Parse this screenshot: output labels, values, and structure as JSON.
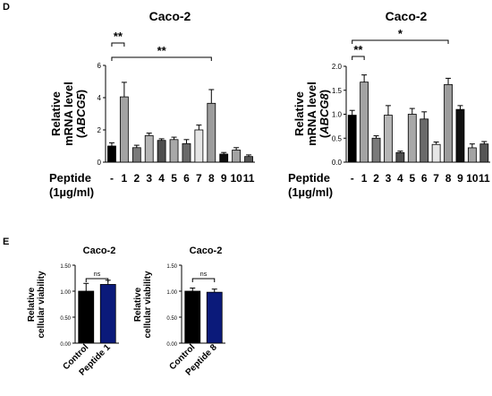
{
  "panels": {
    "d_label": "D",
    "e_label": "E"
  },
  "chart_data": [
    {
      "type": "bar",
      "title": "Caco-2",
      "ylabel": "Relative mRNA level",
      "ylabel_gene": "ABCG5",
      "xlabel_line1": "Peptide",
      "xlabel_line2": "(1µg/ml)",
      "categories": [
        "-",
        "1",
        "2",
        "3",
        "4",
        "5",
        "6",
        "7",
        "8",
        "9",
        "10",
        "11"
      ],
      "values": [
        1.0,
        4.05,
        0.9,
        1.65,
        1.35,
        1.4,
        1.15,
        2.0,
        3.65,
        0.5,
        0.75,
        0.35
      ],
      "errors": [
        0.2,
        0.9,
        0.15,
        0.15,
        0.1,
        0.15,
        0.25,
        0.3,
        0.85,
        0.1,
        0.15,
        0.1
      ],
      "colors": [
        "#000000",
        "#a3a3a3",
        "#7a7a7a",
        "#b5b5b5",
        "#4e4e4e",
        "#a8a8a8",
        "#6a6a6a",
        "#e6e6e6",
        "#9c9c9c",
        "#101010",
        "#a3a3a3",
        "#555555"
      ],
      "ylim": [
        0,
        6
      ],
      "yticks": [
        0,
        2,
        4,
        6
      ],
      "significance": [
        {
          "from": 0,
          "to": 1,
          "label": "**"
        },
        {
          "from": 0,
          "to": 8,
          "label": "**"
        }
      ]
    },
    {
      "type": "bar",
      "title": "Caco-2",
      "ylabel": "Relative mRNA level",
      "ylabel_gene": "ABCG8",
      "xlabel_line1": "Peptide",
      "xlabel_line2": "(1µg/ml)",
      "categories": [
        "-",
        "1",
        "2",
        "3",
        "4",
        "5",
        "6",
        "7",
        "8",
        "9",
        "10",
        "11"
      ],
      "values": [
        0.98,
        1.67,
        0.5,
        0.98,
        0.2,
        1.0,
        0.9,
        0.37,
        1.62,
        1.1,
        0.3,
        0.38
      ],
      "errors": [
        0.1,
        0.15,
        0.05,
        0.2,
        0.03,
        0.12,
        0.15,
        0.05,
        0.13,
        0.08,
        0.08,
        0.05
      ],
      "colors": [
        "#000000",
        "#a3a3a3",
        "#7a7a7a",
        "#b5b5b5",
        "#4e4e4e",
        "#a8a8a8",
        "#6a6a6a",
        "#e6e6e6",
        "#9c9c9c",
        "#101010",
        "#a3a3a3",
        "#555555"
      ],
      "ylim": [
        0,
        2.0
      ],
      "yticks": [
        0,
        0.5,
        1.0,
        1.5,
        2.0
      ],
      "ytick_labels": [
        "0.0",
        "0.5",
        "1.0",
        "1.5",
        "2.0"
      ],
      "significance": [
        {
          "from": 0,
          "to": 1,
          "label": "**"
        },
        {
          "from": 0,
          "to": 8,
          "label": "*"
        }
      ]
    },
    {
      "type": "bar",
      "title": "Caco-2",
      "ylabel": "Relative cellular viability",
      "categories": [
        "Control",
        "Peptide 1"
      ],
      "values": [
        1.0,
        1.13
      ],
      "errors": [
        0.15,
        0.08
      ],
      "colors": [
        "#000000",
        "#0b1a7a"
      ],
      "ylim": [
        0,
        1.5
      ],
      "yticks": [
        0,
        0.5,
        1.0,
        1.5
      ],
      "ytick_labels": [
        "0.00",
        "0.50",
        "1.00",
        "1.50"
      ],
      "significance": [
        {
          "from": 0,
          "to": 1,
          "label": "ns"
        }
      ]
    },
    {
      "type": "bar",
      "title": "Caco-2",
      "ylabel": "Relative cellular viability",
      "categories": [
        "Control",
        "Peptide 8"
      ],
      "values": [
        1.0,
        0.98
      ],
      "errors": [
        0.06,
        0.06
      ],
      "colors": [
        "#000000",
        "#0b1a7a"
      ],
      "ylim": [
        0,
        1.5
      ],
      "yticks": [
        0,
        0.5,
        1.0,
        1.5
      ],
      "ytick_labels": [
        "0.00",
        "0.50",
        "1.00",
        "1.50"
      ],
      "significance": [
        {
          "from": 0,
          "to": 1,
          "label": "ns"
        }
      ]
    }
  ]
}
